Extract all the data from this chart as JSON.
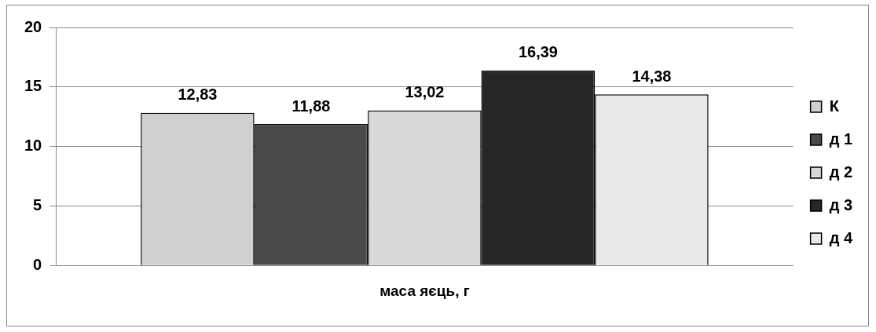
{
  "chart_data": {
    "type": "bar",
    "categories": [
      "маса яєць, г"
    ],
    "series": [
      {
        "name": "К",
        "color": "#d0d0d0",
        "values": [
          12.83
        ],
        "value_labels": [
          "12,83"
        ]
      },
      {
        "name": "д 1",
        "color": "#4a4a4a",
        "values": [
          11.88
        ],
        "value_labels": [
          "11,88"
        ]
      },
      {
        "name": "д 2",
        "color": "#d9d9d9",
        "values": [
          13.02
        ],
        "value_labels": [
          "13,02"
        ]
      },
      {
        "name": "д 3",
        "color": "#262626",
        "values": [
          16.39
        ],
        "value_labels": [
          "16,39"
        ]
      },
      {
        "name": "д 4",
        "color": "#e9e9e9",
        "values": [
          14.38
        ],
        "value_labels": [
          "14,38"
        ]
      }
    ],
    "ylim": [
      0,
      20
    ],
    "yticks": [
      0,
      5,
      10,
      15,
      20
    ],
    "grid": "y",
    "legend": "right"
  }
}
